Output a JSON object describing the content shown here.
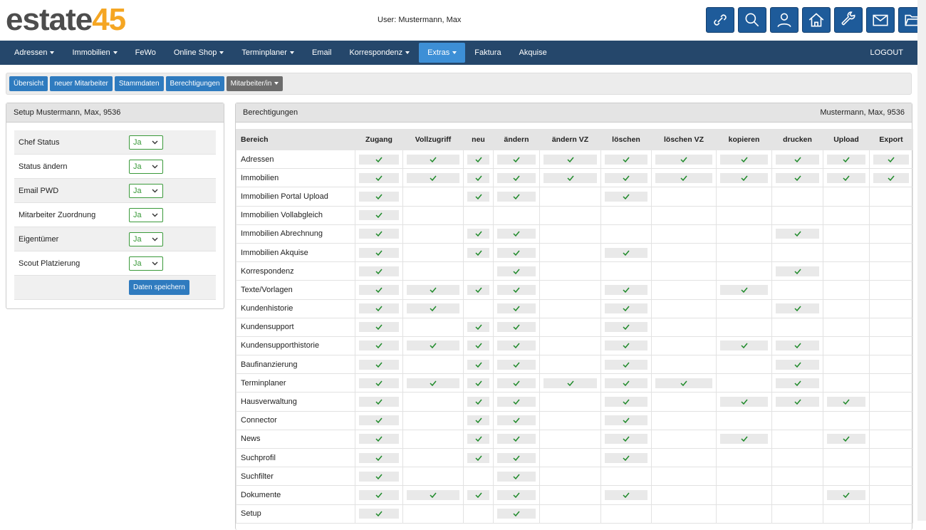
{
  "header": {
    "logo": {
      "word": "estate",
      "number": "45"
    },
    "user": "User: Mustermann, Max"
  },
  "nav": {
    "items": [
      {
        "label": "Adressen",
        "dropdown": true
      },
      {
        "label": "Immobilien",
        "dropdown": true
      },
      {
        "label": "FeWo",
        "dropdown": false
      },
      {
        "label": "Online Shop",
        "dropdown": true
      },
      {
        "label": "Terminplaner",
        "dropdown": true
      },
      {
        "label": "Email",
        "dropdown": false
      },
      {
        "label": "Korrespondenz",
        "dropdown": true
      },
      {
        "label": "Extras",
        "dropdown": true,
        "active": true
      },
      {
        "label": "Faktura",
        "dropdown": false
      },
      {
        "label": "Akquise",
        "dropdown": false
      }
    ],
    "logout": "LOGOUT"
  },
  "toolbar": {
    "buttons": [
      {
        "label": "Übersicht",
        "color": "#2f7bbf"
      },
      {
        "label": "neuer Mitarbeiter",
        "color": "#2f7bbf"
      },
      {
        "label": "Stammdaten",
        "color": "#2f7bbf"
      },
      {
        "label": "Berechtigungen",
        "color": "#2f7bbf"
      },
      {
        "label": "Mitarbeiter/in",
        "color": "#6c6c6c",
        "dropdown": true
      }
    ]
  },
  "setup_panel": {
    "title": "Setup Mustermann, Max, 9536",
    "rows": [
      {
        "label": "Chef Status",
        "value": "Ja"
      },
      {
        "label": "Status ändern",
        "value": "Ja"
      },
      {
        "label": "Email PWD",
        "value": "Ja"
      },
      {
        "label": "Mitarbeiter Zuordnung",
        "value": "Ja"
      },
      {
        "label": "Eigentümer",
        "value": "Ja"
      },
      {
        "label": "Scout Platzierung",
        "value": "Ja"
      }
    ],
    "save_button": "Daten speichern"
  },
  "permissions_panel": {
    "title": "Berechtigungen",
    "user": "Mustermann, Max, 9536",
    "table": {
      "columns": [
        "Bereich",
        "Zugang",
        "Vollzugriff",
        "neu",
        "ändern",
        "ändern VZ",
        "löschen",
        "löschen VZ",
        "kopieren",
        "drucken",
        "Upload",
        "Export"
      ],
      "rows": [
        {
          "area": "Adressen",
          "rights": [
            true,
            true,
            true,
            true,
            true,
            true,
            true,
            true,
            true,
            true,
            true
          ]
        },
        {
          "area": "Immobilien",
          "rights": [
            true,
            true,
            true,
            true,
            true,
            true,
            true,
            true,
            true,
            true,
            true
          ]
        },
        {
          "area": "Immobilien Portal Upload",
          "rights": [
            true,
            false,
            true,
            true,
            false,
            true,
            false,
            false,
            false,
            false,
            false
          ]
        },
        {
          "area": "Immobilien Vollabgleich",
          "rights": [
            true,
            false,
            false,
            false,
            false,
            false,
            false,
            false,
            false,
            false,
            false
          ]
        },
        {
          "area": "Immobilien Abrechnung",
          "rights": [
            true,
            false,
            true,
            true,
            false,
            false,
            false,
            false,
            true,
            false,
            false
          ]
        },
        {
          "area": "Immobilien Akquise",
          "rights": [
            true,
            false,
            true,
            true,
            false,
            true,
            false,
            false,
            false,
            false,
            false
          ]
        },
        {
          "area": "Korrespondenz",
          "rights": [
            true,
            false,
            false,
            true,
            false,
            false,
            false,
            false,
            true,
            false,
            false
          ]
        },
        {
          "area": "Texte/Vorlagen",
          "rights": [
            true,
            true,
            true,
            true,
            false,
            true,
            false,
            true,
            false,
            false,
            false
          ]
        },
        {
          "area": "Kundenhistorie",
          "rights": [
            true,
            true,
            false,
            true,
            false,
            true,
            false,
            false,
            true,
            false,
            false
          ]
        },
        {
          "area": "Kundensupport",
          "rights": [
            true,
            false,
            true,
            true,
            false,
            true,
            false,
            false,
            false,
            false,
            false
          ]
        },
        {
          "area": "Kundensupporthistorie",
          "rights": [
            true,
            true,
            true,
            true,
            false,
            true,
            false,
            true,
            true,
            false,
            false
          ]
        },
        {
          "area": "Baufinanzierung",
          "rights": [
            true,
            false,
            true,
            true,
            false,
            true,
            false,
            false,
            true,
            false,
            false
          ]
        },
        {
          "area": "Terminplaner",
          "rights": [
            true,
            true,
            true,
            true,
            true,
            true,
            true,
            false,
            true,
            false,
            false
          ]
        },
        {
          "area": "Hausverwaltung",
          "rights": [
            true,
            false,
            true,
            true,
            false,
            true,
            false,
            true,
            true,
            true,
            false
          ]
        },
        {
          "area": "Connector",
          "rights": [
            true,
            false,
            true,
            true,
            false,
            true,
            false,
            false,
            false,
            false,
            false
          ]
        },
        {
          "area": "News",
          "rights": [
            true,
            false,
            true,
            true,
            false,
            true,
            false,
            true,
            false,
            true,
            false
          ]
        },
        {
          "area": "Suchprofil",
          "rights": [
            true,
            false,
            true,
            true,
            false,
            true,
            false,
            false,
            false,
            false,
            false
          ]
        },
        {
          "area": "Suchfilter",
          "rights": [
            true,
            false,
            false,
            true,
            false,
            false,
            false,
            false,
            false,
            false,
            false
          ]
        },
        {
          "area": "Dokumente",
          "rights": [
            true,
            true,
            true,
            true,
            false,
            true,
            false,
            false,
            false,
            true,
            false
          ]
        },
        {
          "area": "Setup",
          "rights": [
            true,
            false,
            false,
            true,
            false,
            false,
            false,
            false,
            false,
            false,
            false
          ]
        }
      ]
    }
  }
}
